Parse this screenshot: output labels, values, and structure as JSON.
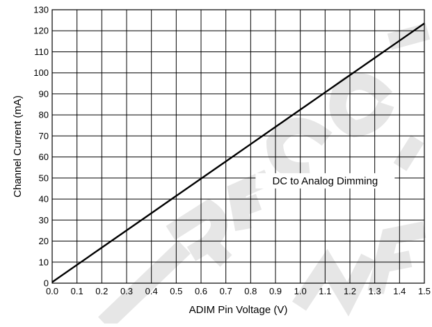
{
  "watermark_text": "NOT RECOMMENDED",
  "chart_data": {
    "type": "line",
    "title": "",
    "xlabel": "ADIM Pin Voltage (V)",
    "ylabel": "Channel Current (mA)",
    "xlim": [
      0.0,
      1.5
    ],
    "ylim": [
      0,
      130
    ],
    "x_ticks": [
      0.0,
      0.1,
      0.2,
      0.3,
      0.4,
      0.5,
      0.6,
      0.7,
      0.8,
      0.9,
      1.0,
      1.1,
      1.2,
      1.3,
      1.4,
      1.5
    ],
    "x_tick_labels": [
      "0.0",
      "0.1",
      "0.2",
      "0.3",
      "0.4",
      "0.5",
      "0.6",
      "0.7",
      "0.8",
      "0.9",
      "1.0",
      "1.1",
      "1.2",
      "1.3",
      "1.4",
      "1.5"
    ],
    "y_ticks": [
      0,
      10,
      20,
      30,
      40,
      50,
      60,
      70,
      80,
      90,
      100,
      110,
      120,
      130
    ],
    "y_tick_labels": [
      "0",
      "10",
      "20",
      "30",
      "40",
      "50",
      "60",
      "70",
      "80",
      "90",
      "100",
      "110",
      "120",
      "130"
    ],
    "grid": true,
    "annotation": {
      "text": "DC to Analog Dimming",
      "x": 1.1,
      "y": 47
    },
    "series": [
      {
        "x": [
          0.0,
          0.1,
          0.2,
          0.3,
          0.4,
          0.5,
          0.6,
          0.7,
          0.8,
          0.9,
          1.0,
          1.1,
          1.2,
          1.3,
          1.4,
          1.5
        ],
        "y": [
          0.5,
          8.7,
          16.9,
          25.1,
          33.3,
          41.5,
          49.7,
          57.9,
          66.1,
          74.3,
          82.5,
          90.7,
          98.9,
          107.1,
          115.3,
          123.5
        ]
      }
    ]
  },
  "colors": {
    "line": "#000000",
    "grid": "#000000",
    "watermark": "#e6e6e6"
  }
}
